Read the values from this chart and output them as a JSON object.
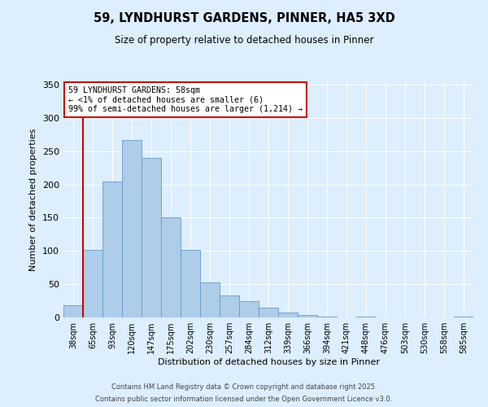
{
  "title": "59, LYNDHURST GARDENS, PINNER, HA5 3XD",
  "subtitle": "Size of property relative to detached houses in Pinner",
  "xlabel": "Distribution of detached houses by size in Pinner",
  "ylabel": "Number of detached properties",
  "bar_labels": [
    "38sqm",
    "65sqm",
    "93sqm",
    "120sqm",
    "147sqm",
    "175sqm",
    "202sqm",
    "230sqm",
    "257sqm",
    "284sqm",
    "312sqm",
    "339sqm",
    "366sqm",
    "394sqm",
    "421sqm",
    "448sqm",
    "476sqm",
    "503sqm",
    "530sqm",
    "558sqm",
    "585sqm"
  ],
  "bar_values": [
    18,
    101,
    204,
    267,
    240,
    150,
    101,
    53,
    33,
    25,
    15,
    7,
    4,
    1,
    0,
    1,
    0,
    0,
    0,
    0,
    1
  ],
  "bar_color": "#aecde8",
  "bar_edgecolor": "#6699cc",
  "bg_color": "#ddeeff",
  "grid_color": "#ffffff",
  "vline_color": "#cc0000",
  "annotation_text": "59 LYNDHURST GARDENS: 58sqm\n← <1% of detached houses are smaller (6)\n99% of semi-detached houses are larger (1,214) →",
  "annotation_box_color": "#ffffff",
  "annotation_box_edgecolor": "#cc0000",
  "ylim": [
    0,
    355
  ],
  "footer1": "Contains HM Land Registry data © Crown copyright and database right 2025.",
  "footer2": "Contains public sector information licensed under the Open Government Licence v3.0."
}
